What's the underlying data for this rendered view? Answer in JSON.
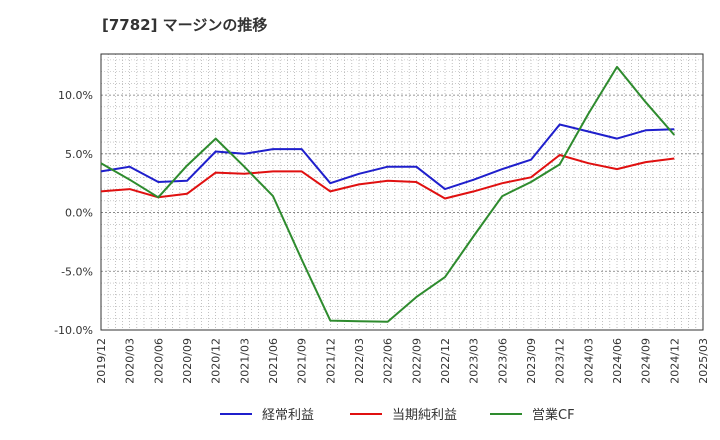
{
  "chart_data": {
    "type": "line",
    "title": "[7782]  マージンの推移",
    "x": [
      "2019/12",
      "2020/03",
      "2020/06",
      "2020/09",
      "2020/12",
      "2021/03",
      "2021/06",
      "2021/09",
      "2021/12",
      "2022/03",
      "2022/06",
      "2022/09",
      "2022/12",
      "2023/03",
      "2023/06",
      "2023/09",
      "2023/12",
      "2024/03",
      "2024/06",
      "2024/09",
      "2024/12"
    ],
    "x_ticks": [
      "2019/12",
      "2020/03",
      "2020/06",
      "2020/09",
      "2020/12",
      "2021/03",
      "2021/06",
      "2021/09",
      "2021/12",
      "2022/03",
      "2022/06",
      "2022/09",
      "2022/12",
      "2023/03",
      "2023/06",
      "2023/09",
      "2023/12",
      "2024/03",
      "2024/06",
      "2024/09",
      "2024/12",
      "2025/03"
    ],
    "y_ticks": [
      10,
      5,
      0,
      -5,
      -10
    ],
    "y_tick_labels": [
      "10.0%",
      "5.0%",
      "0.0%",
      "-5.0%",
      "-10.0%"
    ],
    "ylim": [
      -10,
      13.5
    ],
    "grid": true,
    "legend_position": "bottom",
    "series": [
      {
        "name": "経常利益",
        "color": "#1f1fcc",
        "values": [
          3.5,
          3.9,
          2.6,
          2.7,
          5.2,
          5.0,
          5.4,
          5.4,
          2.5,
          3.3,
          3.9,
          3.9,
          2.0,
          2.8,
          3.7,
          4.5,
          7.5,
          6.9,
          6.3,
          7.0,
          7.1
        ]
      },
      {
        "name": "当期純利益",
        "color": "#e01010",
        "values": [
          1.8,
          2.0,
          1.3,
          1.6,
          3.4,
          3.3,
          3.5,
          3.5,
          1.8,
          2.4,
          2.7,
          2.6,
          1.2,
          1.8,
          2.5,
          3.0,
          4.9,
          4.2,
          3.7,
          4.3,
          4.6
        ]
      },
      {
        "name": "営業CF",
        "color": "#2e8b2e",
        "values": [
          4.2,
          2.8,
          1.3,
          4.0,
          6.3,
          3.9,
          1.4,
          -4.0,
          -9.2,
          -9.25,
          -9.3,
          -7.2,
          -5.5,
          -2.0,
          1.4,
          2.6,
          4.1,
          8.4,
          12.4,
          9.4,
          6.6
        ]
      }
    ]
  }
}
